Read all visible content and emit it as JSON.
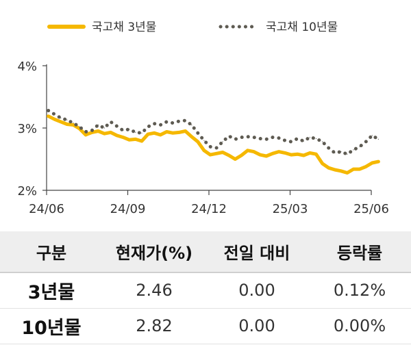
{
  "colors": {
    "series_3y": "#F5B800",
    "series_10y": "#5E5B52",
    "axis": "#444444"
  },
  "chart_data": {
    "type": "line",
    "x_ticks": [
      "24/06",
      "24/09",
      "24/12",
      "25/03",
      "25/06"
    ],
    "y_ticks": [
      "2%",
      "3%",
      "4%"
    ],
    "ylim": [
      2.0,
      4.0
    ],
    "legend_position": "top",
    "grid": false,
    "series": [
      {
        "name": "국고채 3년물",
        "style": "solid",
        "color": "#F5B800",
        "x": [
          "2024-06-03",
          "2024-06-10",
          "2024-06-17",
          "2024-06-24",
          "2024-07-01",
          "2024-07-08",
          "2024-07-15",
          "2024-07-22",
          "2024-07-29",
          "2024-08-05",
          "2024-08-12",
          "2024-08-19",
          "2024-08-26",
          "2024-09-02",
          "2024-09-09",
          "2024-09-16",
          "2024-09-23",
          "2024-09-30",
          "2024-10-07",
          "2024-10-14",
          "2024-10-21",
          "2024-10-28",
          "2024-11-04",
          "2024-11-11",
          "2024-11-18",
          "2024-11-25",
          "2024-12-02",
          "2024-12-09",
          "2024-12-16",
          "2024-12-23",
          "2024-12-30",
          "2025-01-06",
          "2025-01-13",
          "2025-01-20",
          "2025-01-27",
          "2025-02-03",
          "2025-02-10",
          "2025-02-17",
          "2025-02-24",
          "2025-03-03",
          "2025-03-10",
          "2025-03-17",
          "2025-03-24",
          "2025-03-31",
          "2025-04-07",
          "2025-04-14",
          "2025-04-21",
          "2025-04-28",
          "2025-05-05",
          "2025-05-12",
          "2025-05-19",
          "2025-05-26",
          "2025-06-02",
          "2025-06-09"
        ],
        "values": [
          3.19,
          3.14,
          3.1,
          3.06,
          3.05,
          2.99,
          2.89,
          2.93,
          2.95,
          2.91,
          2.93,
          2.88,
          2.85,
          2.81,
          2.82,
          2.79,
          2.9,
          2.92,
          2.89,
          2.94,
          2.92,
          2.93,
          2.95,
          2.86,
          2.78,
          2.64,
          2.57,
          2.59,
          2.61,
          2.56,
          2.5,
          2.56,
          2.64,
          2.62,
          2.57,
          2.55,
          2.59,
          2.62,
          2.6,
          2.57,
          2.58,
          2.56,
          2.6,
          2.58,
          2.43,
          2.36,
          2.33,
          2.31,
          2.28,
          2.34,
          2.34,
          2.38,
          2.44,
          2.46
        ]
      },
      {
        "name": "국고채 10년물",
        "style": "dotted",
        "color": "#5E5B52",
        "x": [
          "2024-06-03",
          "2024-06-10",
          "2024-06-17",
          "2024-06-24",
          "2024-07-01",
          "2024-07-08",
          "2024-07-15",
          "2024-07-22",
          "2024-07-29",
          "2024-08-05",
          "2024-08-12",
          "2024-08-19",
          "2024-08-26",
          "2024-09-02",
          "2024-09-09",
          "2024-09-16",
          "2024-09-23",
          "2024-09-30",
          "2024-10-07",
          "2024-10-14",
          "2024-10-21",
          "2024-10-28",
          "2024-11-04",
          "2024-11-11",
          "2024-11-18",
          "2024-11-25",
          "2024-12-02",
          "2024-12-09",
          "2024-12-16",
          "2024-12-23",
          "2024-12-30",
          "2025-01-06",
          "2025-01-13",
          "2025-01-20",
          "2025-01-27",
          "2025-02-03",
          "2025-02-10",
          "2025-02-17",
          "2025-02-24",
          "2025-03-03",
          "2025-03-10",
          "2025-03-17",
          "2025-03-24",
          "2025-03-31",
          "2025-04-07",
          "2025-04-14",
          "2025-04-21",
          "2025-04-28",
          "2025-05-05",
          "2025-05-12",
          "2025-05-19",
          "2025-05-26",
          "2025-06-02",
          "2025-06-09"
        ],
        "values": [
          3.28,
          3.22,
          3.16,
          3.13,
          3.08,
          3.02,
          2.94,
          2.96,
          3.05,
          3.0,
          3.1,
          3.03,
          2.96,
          2.98,
          2.93,
          2.92,
          3.02,
          3.07,
          3.05,
          3.1,
          3.08,
          3.11,
          3.12,
          3.05,
          2.92,
          2.8,
          2.7,
          2.68,
          2.78,
          2.87,
          2.82,
          2.85,
          2.86,
          2.85,
          2.83,
          2.82,
          2.85,
          2.84,
          2.8,
          2.78,
          2.83,
          2.79,
          2.85,
          2.83,
          2.78,
          2.68,
          2.6,
          2.62,
          2.58,
          2.65,
          2.7,
          2.78,
          2.88,
          2.82
        ]
      }
    ]
  },
  "table": {
    "headers": [
      "구분",
      "현재가(%)",
      "전일 대비",
      "등락률"
    ],
    "rows": [
      {
        "label": "3년물",
        "current": "2.46",
        "change": "0.00",
        "rate": "0.12%"
      },
      {
        "label": "10년물",
        "current": "2.82",
        "change": "0.00",
        "rate": "0.00%"
      }
    ]
  }
}
